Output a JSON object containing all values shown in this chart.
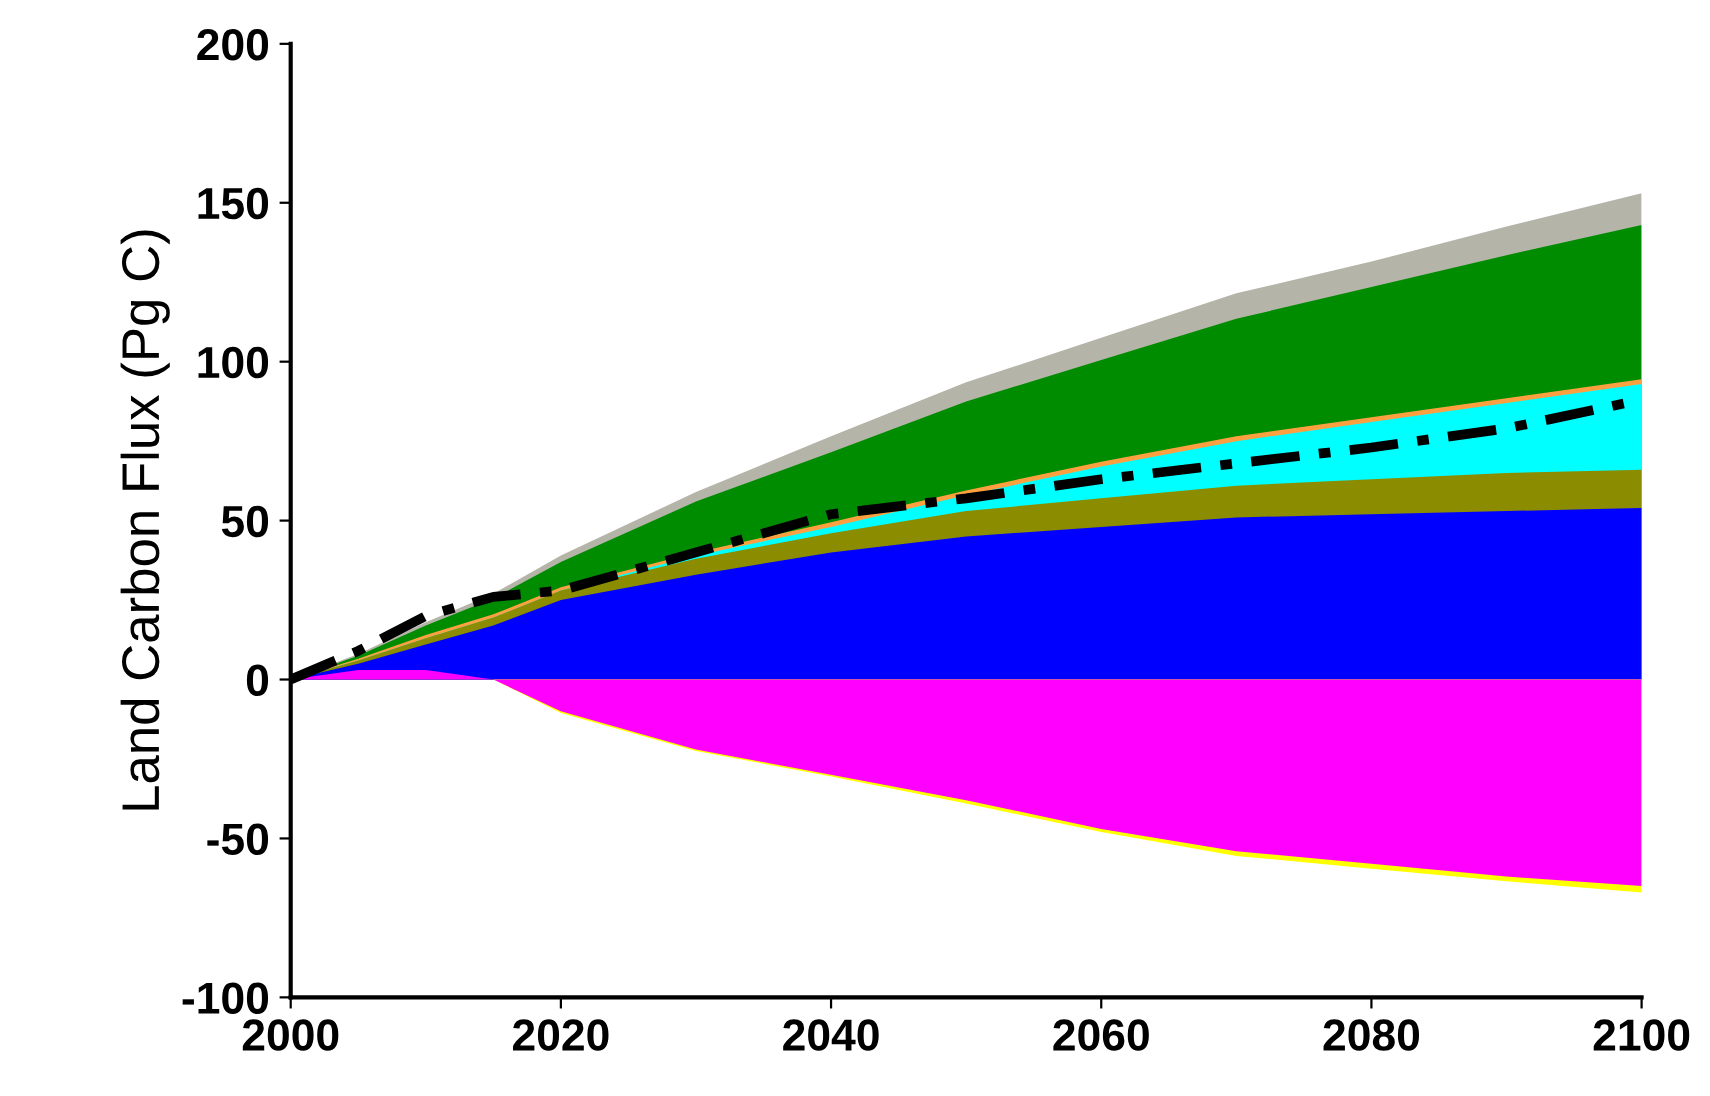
{
  "chart_data": {
    "type": "area",
    "ylabel": "Land Carbon Flux (Pg C)",
    "x": [
      2000,
      2005,
      2010,
      2015,
      2020,
      2030,
      2040,
      2050,
      2060,
      2070,
      2080,
      2090,
      2100
    ],
    "xlim": [
      2000,
      2100
    ],
    "xticks": [
      2000,
      2020,
      2040,
      2060,
      2080,
      2100
    ],
    "ylim": [
      -100,
      200
    ],
    "yticks": [
      -100,
      -50,
      0,
      50,
      100,
      150,
      200
    ],
    "grid": false,
    "legend": false,
    "series": [
      {
        "color": "#b4b4a8",
        "values": [
          0,
          8,
          18,
          27,
          39,
          59,
          76.5,
          93.5,
          107.5,
          121.5,
          131.5,
          142.5,
          153
        ]
      },
      {
        "color": "#008c00",
        "values": [
          0,
          7.5,
          17,
          25.5,
          37,
          56,
          71.5,
          87.5,
          100.5,
          113.5,
          123.5,
          133.5,
          143
        ]
      },
      {
        "color": "#ffa040",
        "values": [
          0,
          6.5,
          14,
          20.5,
          29,
          40,
          49.5,
          59.5,
          68.5,
          76.5,
          82.5,
          88.5,
          94.5
        ]
      },
      {
        "color": "#00ffff",
        "values": [
          0,
          6,
          13,
          19.5,
          28,
          39,
          48,
          58,
          67,
          75,
          81,
          87,
          93
        ]
      },
      {
        "color": "#8c8c00",
        "values": [
          0,
          6,
          13,
          19.5,
          28,
          38,
          46,
          53,
          57,
          61,
          63,
          65,
          66
        ]
      },
      {
        "color": "#0000ff",
        "values": [
          0,
          5,
          11,
          17,
          25,
          33,
          40,
          45,
          48,
          51,
          52,
          53,
          54
        ]
      },
      {
        "color": "#ffff00",
        "values": [
          0,
          0,
          0,
          0,
          -10.5,
          -22.5,
          -30.5,
          -39,
          -48,
          -55.5,
          -59.5,
          -63.5,
          -67
        ]
      },
      {
        "color": "#ff00ff",
        "values": [
          0,
          3,
          3,
          0,
          -10,
          -22,
          -30,
          -38,
          -47,
          -54,
          -58,
          -62,
          -65
        ]
      },
      {
        "type": "line",
        "color": "#000000",
        "line_style": "dashed",
        "values": [
          0,
          9,
          20,
          26,
          28,
          40,
          52,
          57,
          63,
          68,
          73,
          79,
          88
        ]
      }
    ]
  }
}
